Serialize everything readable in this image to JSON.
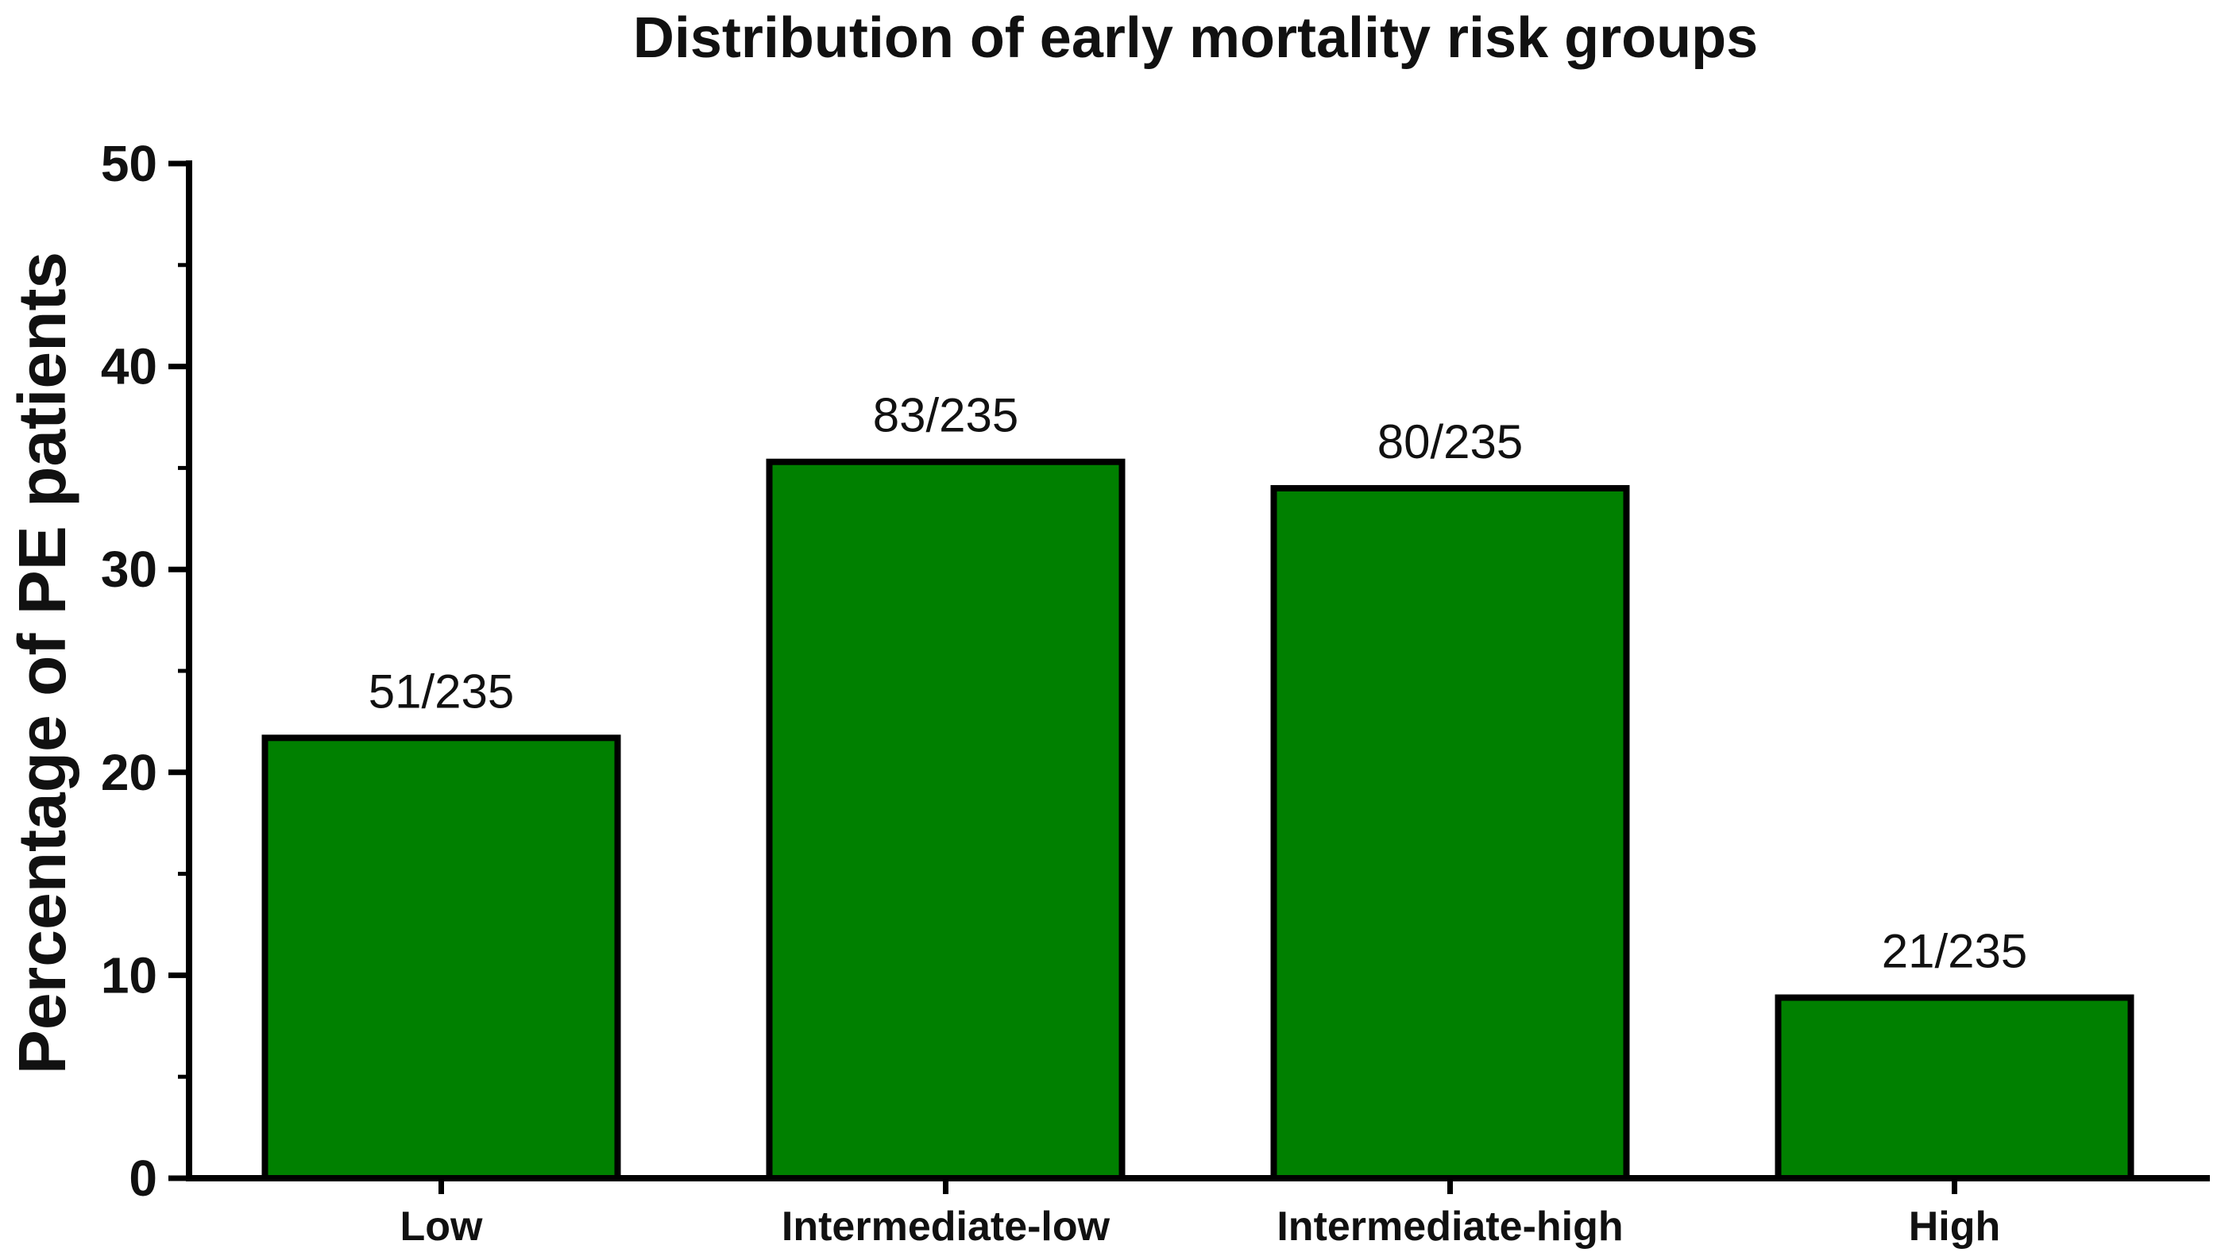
{
  "chart_data": {
    "type": "bar",
    "title": "Distribution of early mortality risk groups",
    "xlabel": "",
    "ylabel": "Percentage of PE patients",
    "ylim": [
      0,
      50
    ],
    "yticks": [
      "0",
      "10",
      "20",
      "30",
      "40",
      "50"
    ],
    "categories": [
      "Low",
      "Intermediate-low",
      "Intermediate-high",
      "High"
    ],
    "values": [
      21.7,
      35.3,
      34.0,
      8.9
    ],
    "data_labels": [
      "51/235",
      "83/235",
      "80/235",
      "21/235"
    ],
    "bar_color": "#008000",
    "bar_edge_color": "#000000",
    "grid": false,
    "legend": "none"
  }
}
